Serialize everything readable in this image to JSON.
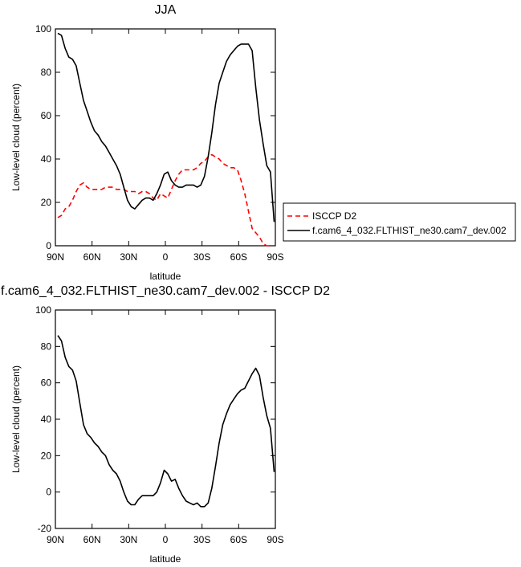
{
  "chart_data": [
    {
      "type": "line",
      "title": "JJA",
      "xlabel": "latitude",
      "ylabel": "Low-level cloud (percent)",
      "xlim": [
        90,
        -90
      ],
      "ylim": [
        0,
        100
      ],
      "x_ticks": [
        90,
        60,
        30,
        0,
        -30,
        -60,
        -90
      ],
      "x_tick_labels": [
        "90N",
        "60N",
        "30N",
        "0",
        "30S",
        "60S",
        "90S"
      ],
      "y_ticks": [
        0,
        20,
        40,
        60,
        80,
        100
      ],
      "y_tick_labels": [
        "0",
        "20",
        "40",
        "60",
        "80",
        "100"
      ],
      "legend_position": "right",
      "series": [
        {
          "name": "ISCCP D2",
          "color": "#ff0000",
          "dash": "dashed",
          "x": [
            88,
            85,
            82,
            79,
            76,
            73,
            70,
            67,
            64,
            61,
            58,
            55,
            52,
            49,
            46,
            43,
            40,
            37,
            34,
            31,
            28,
            25,
            22,
            19,
            16,
            13,
            10,
            7,
            4,
            1,
            -2,
            -5,
            -8,
            -11,
            -14,
            -17,
            -20,
            -23,
            -26,
            -29,
            -32,
            -35,
            -38,
            -41,
            -44,
            -47,
            -50,
            -53,
            -56,
            -59,
            -62,
            -65,
            -68,
            -71,
            -74,
            -77,
            -80,
            -83,
            -86
          ],
          "y": [
            13,
            14,
            17,
            18,
            21,
            25,
            28,
            29,
            27,
            26,
            26,
            26,
            26,
            27,
            27,
            27,
            26,
            26,
            26,
            25,
            25,
            25,
            24,
            25,
            25,
            24,
            22,
            21,
            24,
            23,
            22,
            26,
            30,
            33,
            35,
            35,
            35,
            35,
            36,
            38,
            39,
            41,
            42,
            41,
            40,
            38,
            37,
            36,
            36,
            35,
            30,
            24,
            16,
            8,
            6,
            4,
            1,
            0,
            0
          ]
        },
        {
          "name": "f.cam6_4_032.FLTHIST_ne30.cam7_dev.002",
          "color": "#000000",
          "dash": "solid",
          "x": [
            88,
            85,
            82,
            79,
            76,
            73,
            70,
            67,
            64,
            61,
            58,
            55,
            52,
            49,
            46,
            43,
            40,
            37,
            34,
            31,
            28,
            25,
            22,
            19,
            16,
            13,
            10,
            7,
            4,
            1,
            -2,
            -5,
            -8,
            -11,
            -14,
            -17,
            -20,
            -23,
            -26,
            -29,
            -32,
            -35,
            -38,
            -41,
            -44,
            -47,
            -50,
            -53,
            -56,
            -59,
            -62,
            -65,
            -68,
            -71,
            -74,
            -77,
            -80,
            -83,
            -86,
            -89
          ],
          "y": [
            98,
            97,
            91,
            87,
            86,
            83,
            75,
            67,
            62,
            57,
            53,
            51,
            48,
            46,
            43,
            40,
            37,
            33,
            27,
            21,
            18,
            17,
            19,
            21,
            22,
            22,
            21,
            24,
            28,
            33,
            34,
            30,
            28,
            27,
            27,
            28,
            28,
            28,
            27,
            28,
            32,
            41,
            52,
            65,
            75,
            80,
            85,
            88,
            90,
            92,
            93,
            93,
            93,
            90,
            73,
            58,
            47,
            37,
            34,
            11
          ]
        }
      ]
    },
    {
      "type": "line",
      "title": "f.cam6_4_032.FLTHIST_ne30.cam7_dev.002 - ISCCP D2",
      "xlabel": "latitude",
      "ylabel": "Low-level cloud (percent)",
      "xlim": [
        90,
        -90
      ],
      "ylim": [
        -20,
        100
      ],
      "x_ticks": [
        90,
        60,
        30,
        0,
        -30,
        -60,
        -90
      ],
      "x_tick_labels": [
        "90N",
        "60N",
        "30N",
        "0",
        "30S",
        "60S",
        "90S"
      ],
      "y_ticks": [
        -20,
        0,
        20,
        40,
        60,
        80,
        100
      ],
      "y_tick_labels": [
        "-20",
        "0",
        "20",
        "40",
        "60",
        "80",
        "100"
      ],
      "series": [
        {
          "color": "#000000",
          "dash": "solid",
          "x": [
            88,
            85,
            82,
            79,
            76,
            73,
            70,
            67,
            64,
            61,
            58,
            55,
            52,
            49,
            46,
            43,
            40,
            37,
            34,
            31,
            28,
            25,
            22,
            19,
            16,
            13,
            10,
            7,
            4,
            1,
            -2,
            -5,
            -8,
            -11,
            -14,
            -17,
            -20,
            -23,
            -26,
            -29,
            -32,
            -35,
            -38,
            -41,
            -44,
            -47,
            -50,
            -53,
            -56,
            -59,
            -62,
            -65,
            -68,
            -71,
            -74,
            -77,
            -80,
            -83,
            -86,
            -89
          ],
          "y": [
            86,
            83,
            74,
            69,
            67,
            61,
            49,
            37,
            32,
            30,
            27,
            25,
            22,
            20,
            15,
            12,
            10,
            6,
            0,
            -5,
            -7,
            -7,
            -4,
            -2,
            -2,
            -2,
            -2,
            0,
            5,
            12,
            10,
            6,
            7,
            2,
            -2,
            -5,
            -6,
            -7,
            -6,
            -8,
            -8,
            -6,
            2,
            14,
            27,
            37,
            43,
            48,
            51,
            54,
            56,
            57,
            61,
            65,
            68,
            64,
            52,
            42,
            35,
            11
          ]
        }
      ]
    }
  ]
}
